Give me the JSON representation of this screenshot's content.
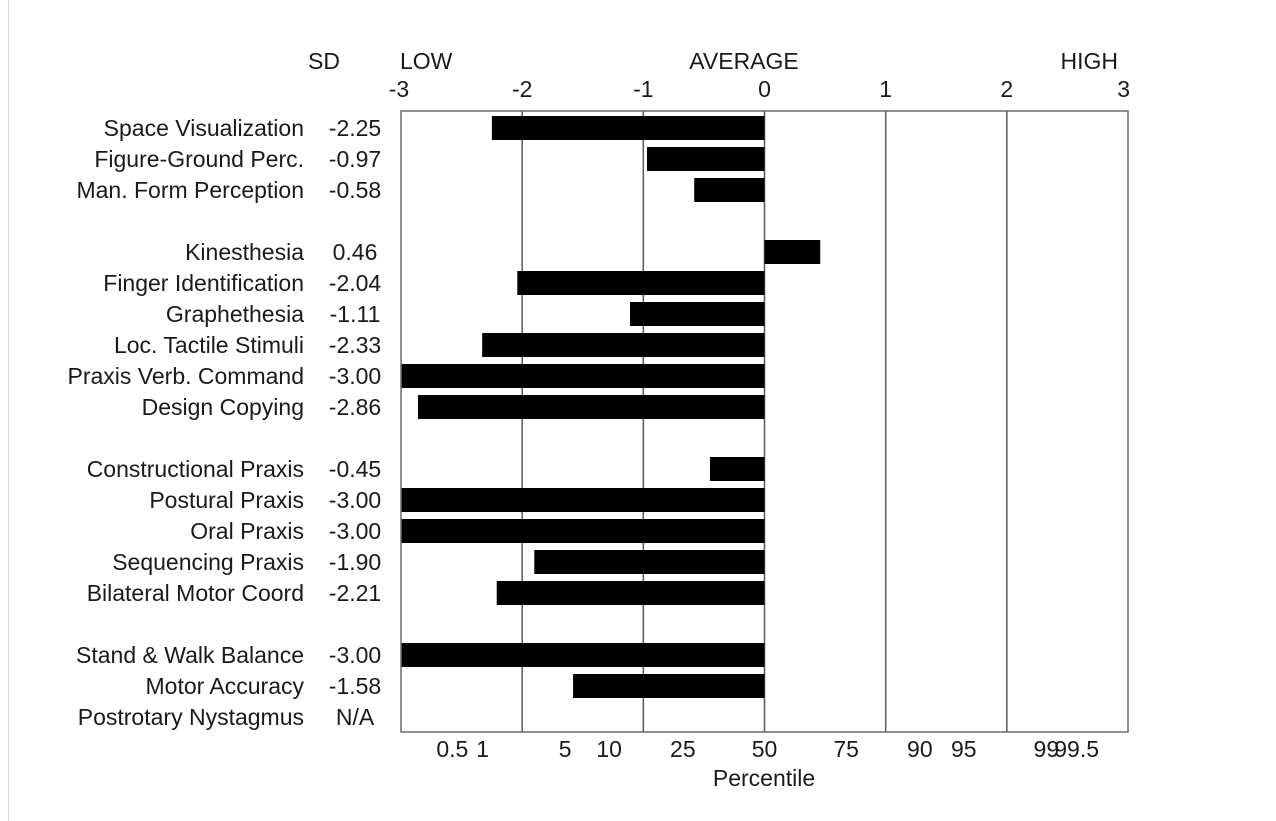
{
  "chart_data": {
    "type": "bar",
    "orientation": "horizontal",
    "header": {
      "sd_label": "SD",
      "low_label": "LOW",
      "average_label": "AVERAGE",
      "high_label": "HIGH"
    },
    "xlim": [
      -3,
      3
    ],
    "sd_ticks": [
      {
        "value": -3,
        "label": "-3"
      },
      {
        "value": -2,
        "label": "-2"
      },
      {
        "value": -1,
        "label": "-1"
      },
      {
        "value": 0,
        "label": "0"
      },
      {
        "value": 1,
        "label": "1"
      },
      {
        "value": 2,
        "label": "2"
      },
      {
        "value": 3,
        "label": "3"
      }
    ],
    "percentile_ticks": [
      {
        "value": -2.576,
        "label": "0.5"
      },
      {
        "value": -2.326,
        "label": "1"
      },
      {
        "value": -1.645,
        "label": "5"
      },
      {
        "value": -1.282,
        "label": "10"
      },
      {
        "value": -0.674,
        "label": "25"
      },
      {
        "value": 0,
        "label": "50"
      },
      {
        "value": 0.674,
        "label": "75"
      },
      {
        "value": 1.282,
        "label": "90"
      },
      {
        "value": 1.645,
        "label": "95"
      },
      {
        "value": 2.326,
        "label": "99"
      },
      {
        "value": 2.576,
        "label": "99.5"
      }
    ],
    "xlabel": "Percentile",
    "grid_lines_at": [
      -2,
      -1,
      0,
      1,
      2
    ],
    "bar_color": "#000000",
    "items": [
      {
        "label": "Space Visualization",
        "score_text": "-2.25",
        "value": -2.25,
        "row": 0
      },
      {
        "label": "Figure-Ground Perc.",
        "score_text": "-0.97",
        "value": -0.97,
        "row": 1
      },
      {
        "label": "Man. Form Perception",
        "score_text": "-0.58",
        "value": -0.58,
        "row": 2
      },
      {
        "label": "Kinesthesia",
        "score_text": "0.46",
        "value": 0.46,
        "row": 4
      },
      {
        "label": "Finger Identification",
        "score_text": "-2.04",
        "value": -2.04,
        "row": 5
      },
      {
        "label": "Graphethesia",
        "score_text": "-1.11",
        "value": -1.11,
        "row": 6
      },
      {
        "label": "Loc. Tactile Stimuli",
        "score_text": "-2.33",
        "value": -2.33,
        "row": 7
      },
      {
        "label": "Praxis Verb. Command",
        "score_text": "-3.00",
        "value": -3.0,
        "row": 8
      },
      {
        "label": "Design Copying",
        "score_text": "-2.86",
        "value": -2.86,
        "row": 9
      },
      {
        "label": "Constructional Praxis",
        "score_text": "-0.45",
        "value": -0.45,
        "row": 11
      },
      {
        "label": "Postural Praxis",
        "score_text": "-3.00",
        "value": -3.0,
        "row": 12
      },
      {
        "label": "Oral Praxis",
        "score_text": "-3.00",
        "value": -3.0,
        "row": 13
      },
      {
        "label": "Sequencing Praxis",
        "score_text": "-1.90",
        "value": -1.9,
        "row": 14
      },
      {
        "label": "Bilateral Motor Coord",
        "score_text": "-2.21",
        "value": -2.21,
        "row": 15
      },
      {
        "label": "Stand & Walk Balance",
        "score_text": "-3.00",
        "value": -3.0,
        "row": 17
      },
      {
        "label": "Motor Accuracy",
        "score_text": "-1.58",
        "value": -1.58,
        "row": 18
      },
      {
        "label": "Postrotary Nystagmus",
        "score_text": "N/A",
        "value": null,
        "row": 19
      }
    ]
  }
}
